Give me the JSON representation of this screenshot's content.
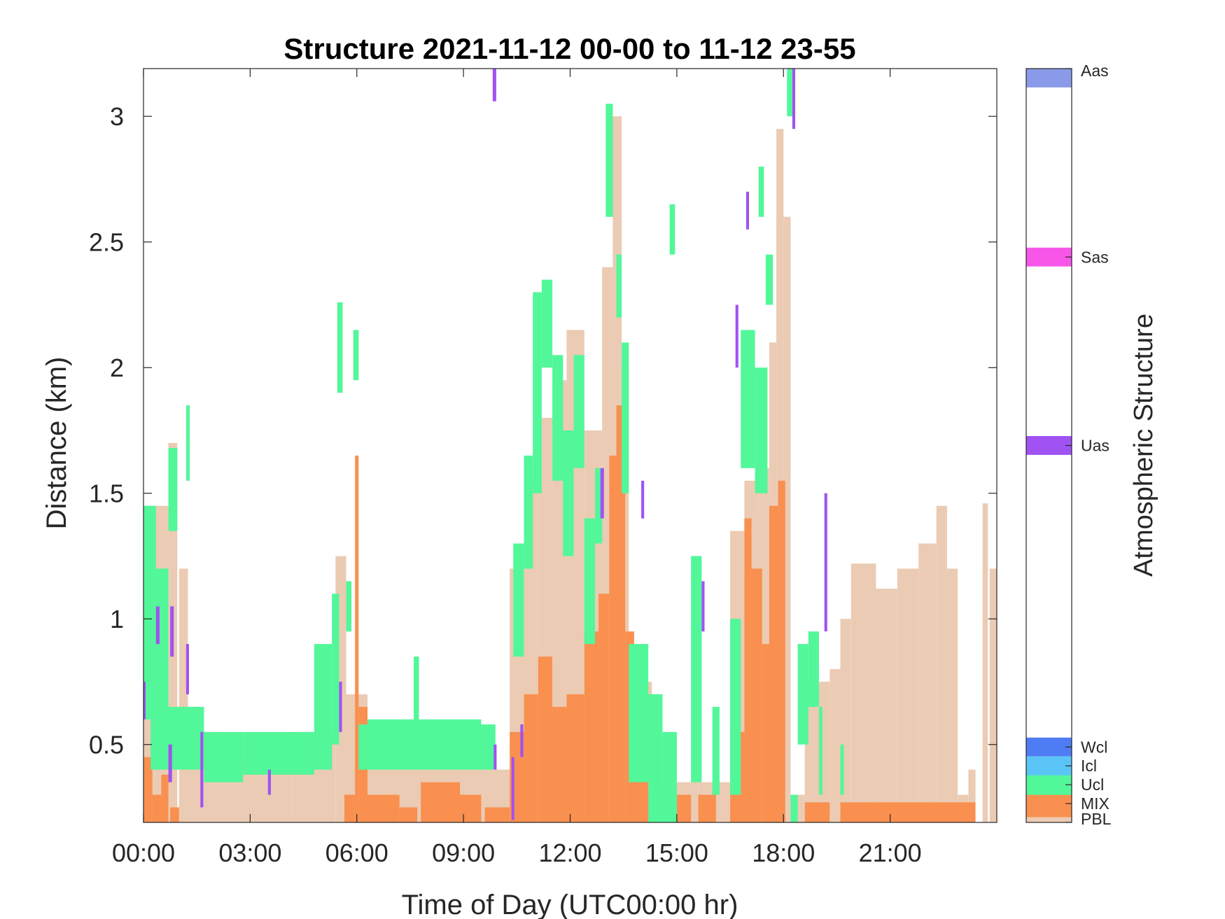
{
  "chart_data": {
    "type": "heatmap",
    "title": "Structure 2021-11-12 00-00 to 11-12 23-55",
    "xlabel": "Time of Day (UTC00:00 hr)",
    "ylabel": "Distance (km)",
    "xlim": [
      0,
      24
    ],
    "ylim": [
      0.19,
      3.19
    ],
    "x_ticks": [
      {
        "value": 0,
        "label": "00:00"
      },
      {
        "value": 3,
        "label": "03:00"
      },
      {
        "value": 6,
        "label": "06:00"
      },
      {
        "value": 9,
        "label": "09:00"
      },
      {
        "value": 12,
        "label": "12:00"
      },
      {
        "value": 15,
        "label": "15:00"
      },
      {
        "value": 18,
        "label": "18:00"
      },
      {
        "value": 21,
        "label": "21:00"
      }
    ],
    "y_ticks": [
      {
        "value": 0.5,
        "label": "0.5"
      },
      {
        "value": 1,
        "label": "1"
      },
      {
        "value": 1.5,
        "label": "1.5"
      },
      {
        "value": 2,
        "label": "2"
      },
      {
        "value": 2.5,
        "label": "2.5"
      },
      {
        "value": 3,
        "label": "3"
      }
    ],
    "colorbar": {
      "label": "Atmospheric Structure",
      "classes": [
        {
          "name": "PBL",
          "color": "#EBCBB3",
          "fraction": 0.007
        },
        {
          "name": "MIX",
          "color": "#F9904F",
          "fraction": 0.036
        },
        {
          "name": "Ucl",
          "color": "#52F79A",
          "fraction": 0.027
        },
        {
          "name": "Icl",
          "color": "#5BC4F6",
          "fraction": 0.025
        },
        {
          "name": "Wcl",
          "color": "#4E7CF4",
          "fraction": 0.025
        },
        {
          "name": "Uas",
          "color": "#A052F2",
          "fraction": 0.025
        },
        {
          "name": "Sas",
          "color": "#F856E9",
          "fraction": 0.025
        },
        {
          "name": "Aas",
          "color": "#8A9AE8",
          "fraction": 0.025
        }
      ],
      "tick_positions": [
        0.0,
        0.025,
        0.05,
        0.075,
        0.1,
        0.5,
        0.75,
        1.0
      ]
    },
    "series": [
      {
        "class": "PBL",
        "segments": [
          [
            0.0,
            0.3,
            0.19,
            1.35
          ],
          [
            0.3,
            0.7,
            0.19,
            1.45
          ],
          [
            0.7,
            0.95,
            0.19,
            1.7
          ],
          [
            1.0,
            1.25,
            0.19,
            1.2
          ],
          [
            1.25,
            2.2,
            0.19,
            0.55
          ],
          [
            2.2,
            3.2,
            0.19,
            0.45
          ],
          [
            3.2,
            4.2,
            0.19,
            0.45
          ],
          [
            4.2,
            5.4,
            0.19,
            0.55
          ],
          [
            5.4,
            5.7,
            0.19,
            1.25
          ],
          [
            5.7,
            6.3,
            0.19,
            0.7
          ],
          [
            6.3,
            10.3,
            0.19,
            0.4
          ],
          [
            10.3,
            10.7,
            0.19,
            1.2
          ],
          [
            10.7,
            11.1,
            0.19,
            1.55
          ],
          [
            11.1,
            11.5,
            0.19,
            1.8
          ],
          [
            11.5,
            11.9,
            0.19,
            1.95
          ],
          [
            11.9,
            12.4,
            0.19,
            2.15
          ],
          [
            12.4,
            12.9,
            0.19,
            1.75
          ],
          [
            12.9,
            13.2,
            0.19,
            2.4
          ],
          [
            13.2,
            13.45,
            0.19,
            3.0
          ],
          [
            13.45,
            13.65,
            0.19,
            2.0
          ],
          [
            13.65,
            14.3,
            0.19,
            0.75
          ],
          [
            14.3,
            15.6,
            0.19,
            0.35
          ],
          [
            15.6,
            16.5,
            0.19,
            0.35
          ],
          [
            16.5,
            16.9,
            0.19,
            1.35
          ],
          [
            16.9,
            17.3,
            0.19,
            1.55
          ],
          [
            17.3,
            17.6,
            0.19,
            1.6
          ],
          [
            17.6,
            17.8,
            0.19,
            2.1
          ],
          [
            17.8,
            18.0,
            0.19,
            2.95
          ],
          [
            18.0,
            18.2,
            0.19,
            2.6
          ],
          [
            18.2,
            18.6,
            0.19,
            0.3
          ],
          [
            18.6,
            19.3,
            0.19,
            0.75
          ],
          [
            19.3,
            19.6,
            0.19,
            0.8
          ],
          [
            19.6,
            19.9,
            0.19,
            1.0
          ],
          [
            19.9,
            20.6,
            0.19,
            1.22
          ],
          [
            20.6,
            21.2,
            0.19,
            1.12
          ],
          [
            21.2,
            21.8,
            0.19,
            1.2
          ],
          [
            21.8,
            22.3,
            0.19,
            1.3
          ],
          [
            22.3,
            22.6,
            0.19,
            1.45
          ],
          [
            22.6,
            22.9,
            0.19,
            1.2
          ],
          [
            22.9,
            23.2,
            0.19,
            0.3
          ],
          [
            23.2,
            23.4,
            0.19,
            0.4
          ],
          [
            23.6,
            23.75,
            0.19,
            1.46
          ],
          [
            23.8,
            24.0,
            0.19,
            1.2
          ]
        ]
      },
      {
        "class": "MIX",
        "segments": [
          [
            0.0,
            0.25,
            0.19,
            0.45
          ],
          [
            0.25,
            0.5,
            0.19,
            0.3
          ],
          [
            0.5,
            0.7,
            0.19,
            0.38
          ],
          [
            0.75,
            1.0,
            0.19,
            0.25
          ],
          [
            5.65,
            5.95,
            0.19,
            0.3
          ],
          [
            5.95,
            6.05,
            0.19,
            1.65
          ],
          [
            6.05,
            6.3,
            0.19,
            0.65
          ],
          [
            6.3,
            7.2,
            0.19,
            0.3
          ],
          [
            7.2,
            7.7,
            0.19,
            0.25
          ],
          [
            7.8,
            8.9,
            0.19,
            0.35
          ],
          [
            8.9,
            9.5,
            0.19,
            0.3
          ],
          [
            9.6,
            10.3,
            0.19,
            0.25
          ],
          [
            10.3,
            10.7,
            0.19,
            0.55
          ],
          [
            10.7,
            11.1,
            0.19,
            0.7
          ],
          [
            11.1,
            11.5,
            0.19,
            0.85
          ],
          [
            11.5,
            11.9,
            0.19,
            0.65
          ],
          [
            11.9,
            12.4,
            0.19,
            0.7
          ],
          [
            12.4,
            12.8,
            0.19,
            0.95
          ],
          [
            12.8,
            13.1,
            0.19,
            1.1
          ],
          [
            13.1,
            13.3,
            0.19,
            1.65
          ],
          [
            13.3,
            13.55,
            0.19,
            1.85
          ],
          [
            13.55,
            13.8,
            0.19,
            0.95
          ],
          [
            13.8,
            14.2,
            0.19,
            0.5
          ],
          [
            14.2,
            14.6,
            0.19,
            0.3
          ],
          [
            15.0,
            15.4,
            0.19,
            0.3
          ],
          [
            15.6,
            16.1,
            0.19,
            0.3
          ],
          [
            16.5,
            16.9,
            0.19,
            0.55
          ],
          [
            16.9,
            17.1,
            0.19,
            1.4
          ],
          [
            17.1,
            17.4,
            0.19,
            1.2
          ],
          [
            17.4,
            17.6,
            0.19,
            0.9
          ],
          [
            17.6,
            17.85,
            0.19,
            1.45
          ],
          [
            17.85,
            18.05,
            0.19,
            1.55
          ],
          [
            18.6,
            19.3,
            0.19,
            0.27
          ],
          [
            19.6,
            23.4,
            0.19,
            0.27
          ]
        ]
      },
      {
        "class": "Ucl",
        "segments": [
          [
            0.0,
            0.35,
            0.6,
            1.45
          ],
          [
            0.35,
            0.7,
            0.45,
            1.2
          ],
          [
            0.7,
            0.95,
            1.35,
            1.68
          ],
          [
            1.2,
            1.3,
            1.55,
            1.85
          ],
          [
            0.2,
            1.7,
            0.4,
            0.65
          ],
          [
            1.7,
            2.8,
            0.35,
            0.55
          ],
          [
            2.8,
            4.8,
            0.38,
            0.55
          ],
          [
            4.8,
            5.3,
            0.4,
            0.9
          ],
          [
            5.3,
            5.5,
            0.5,
            1.1
          ],
          [
            5.45,
            5.6,
            1.9,
            2.26
          ],
          [
            5.7,
            5.85,
            0.95,
            1.15
          ],
          [
            5.9,
            6.05,
            1.95,
            2.15
          ],
          [
            6.05,
            9.9,
            0.4,
            0.58
          ],
          [
            6.3,
            9.5,
            0.45,
            0.6
          ],
          [
            7.6,
            7.75,
            0.6,
            0.85
          ],
          [
            10.4,
            10.7,
            0.85,
            1.3
          ],
          [
            10.7,
            10.95,
            1.2,
            1.65
          ],
          [
            10.95,
            11.2,
            1.5,
            2.3
          ],
          [
            11.2,
            11.5,
            2.0,
            2.35
          ],
          [
            11.5,
            11.8,
            1.55,
            2.05
          ],
          [
            11.8,
            12.1,
            1.25,
            1.75
          ],
          [
            12.1,
            12.4,
            1.6,
            2.05
          ],
          [
            12.4,
            12.7,
            0.9,
            1.4
          ],
          [
            12.7,
            12.9,
            1.3,
            1.6
          ],
          [
            13.0,
            13.2,
            2.6,
            3.05
          ],
          [
            13.3,
            13.45,
            2.2,
            2.45
          ],
          [
            13.45,
            13.65,
            1.5,
            2.1
          ],
          [
            13.65,
            14.2,
            0.35,
            0.9
          ],
          [
            14.2,
            14.6,
            0.19,
            0.7
          ],
          [
            14.6,
            15.0,
            0.19,
            0.55
          ],
          [
            14.8,
            14.95,
            2.45,
            2.65
          ],
          [
            15.4,
            15.7,
            0.35,
            1.25
          ],
          [
            16.0,
            16.2,
            0.3,
            0.65
          ],
          [
            16.5,
            16.8,
            0.3,
            1.0
          ],
          [
            16.8,
            17.2,
            1.6,
            2.15
          ],
          [
            17.2,
            17.55,
            1.5,
            2.0
          ],
          [
            17.5,
            17.7,
            2.25,
            2.45
          ],
          [
            17.3,
            17.45,
            2.6,
            2.8
          ],
          [
            18.2,
            18.4,
            0.19,
            0.3
          ],
          [
            18.4,
            18.7,
            0.5,
            0.9
          ],
          [
            18.7,
            19.0,
            0.65,
            0.95
          ],
          [
            19.0,
            19.1,
            0.3,
            0.65
          ],
          [
            19.6,
            19.7,
            0.3,
            0.5
          ],
          [
            18.1,
            18.25,
            3.0,
            3.19
          ]
        ]
      },
      {
        "class": "Uas",
        "segments": [
          [
            0.0,
            0.06,
            0.6,
            0.75
          ],
          [
            0.35,
            0.45,
            0.9,
            1.05
          ],
          [
            0.7,
            0.8,
            0.35,
            0.5
          ],
          [
            0.75,
            0.85,
            0.85,
            1.05
          ],
          [
            1.2,
            1.28,
            0.7,
            0.9
          ],
          [
            1.6,
            1.68,
            0.25,
            0.55
          ],
          [
            3.5,
            3.58,
            0.3,
            0.4
          ],
          [
            5.5,
            5.58,
            0.55,
            0.75
          ],
          [
            9.85,
            9.93,
            0.4,
            0.5
          ],
          [
            9.82,
            9.92,
            3.06,
            3.19
          ],
          [
            10.35,
            10.43,
            0.2,
            0.45
          ],
          [
            10.6,
            10.68,
            0.45,
            0.58
          ],
          [
            12.85,
            12.95,
            1.4,
            1.6
          ],
          [
            14.0,
            14.08,
            1.4,
            1.55
          ],
          [
            15.7,
            15.78,
            0.95,
            1.15
          ],
          [
            16.65,
            16.73,
            2.0,
            2.25
          ],
          [
            16.95,
            17.03,
            2.55,
            2.7
          ],
          [
            18.25,
            18.33,
            2.95,
            3.19
          ],
          [
            19.15,
            19.23,
            0.95,
            1.5
          ]
        ]
      }
    ]
  }
}
